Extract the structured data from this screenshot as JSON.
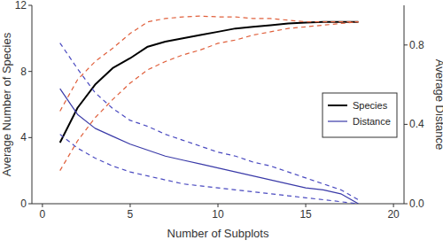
{
  "chart_data": {
    "type": "line",
    "x_label": "Number of Subplots",
    "y_label": "Average Number of Species",
    "y2_label": "Average Distance",
    "x": [
      1,
      2,
      3,
      4,
      5,
      6,
      7,
      8,
      9,
      10,
      11,
      12,
      13,
      14,
      15,
      16,
      17,
      18
    ],
    "xlim": [
      -0.6,
      20.6
    ],
    "xticks": [
      0,
      5,
      10,
      15,
      20
    ],
    "ylim": [
      0,
      12
    ],
    "yticks": [
      0,
      4,
      8,
      12
    ],
    "y2lim": [
      0,
      1.0
    ],
    "y2ticks": [
      {
        "value": 0,
        "label": "0.0"
      },
      0.4,
      0.8
    ],
    "legend": "right",
    "series": [
      {
        "name": "Species",
        "color": "#000000",
        "line_style": "solid",
        "values": [
          3.7,
          5.8,
          7.2,
          8.2,
          8.8,
          9.5,
          9.8,
          10.0,
          10.2,
          10.4,
          10.6,
          10.7,
          10.8,
          10.9,
          10.95,
          11.0,
          11.0,
          11.0
        ]
      },
      {
        "name": "Distance",
        "color": "#3a3aa8",
        "line_style": "solid",
        "axis": "y2",
        "values": [
          0.58,
          0.45,
          0.38,
          0.34,
          0.3,
          0.27,
          0.24,
          0.22,
          0.2,
          0.18,
          0.16,
          0.14,
          0.12,
          0.1,
          0.08,
          0.07,
          0.05,
          0.0
        ]
      },
      {
        "color": "#e0603c",
        "line_style": "dashed",
        "values": [
          5.6,
          7.5,
          8.6,
          9.4,
          10.3,
          11.0,
          11.2,
          11.3,
          11.35,
          11.3,
          11.3,
          11.2,
          11.2,
          11.1,
          11.0,
          11.0,
          11.0,
          11.0
        ]
      },
      {
        "color": "#e0603c",
        "line_style": "dashed",
        "values": [
          2.0,
          3.8,
          5.2,
          6.3,
          7.3,
          8.1,
          8.6,
          9.0,
          9.3,
          9.7,
          9.9,
          10.2,
          10.4,
          10.6,
          10.7,
          10.8,
          10.9,
          11.0
        ]
      },
      {
        "color": "#4a4ac0",
        "line_style": "dashed",
        "axis": "y2",
        "values": [
          0.81,
          0.68,
          0.56,
          0.48,
          0.42,
          0.39,
          0.35,
          0.32,
          0.29,
          0.26,
          0.24,
          0.21,
          0.19,
          0.16,
          0.13,
          0.1,
          0.07,
          0.02
        ]
      },
      {
        "color": "#4a4ac0",
        "line_style": "dashed",
        "axis": "y2",
        "values": [
          0.35,
          0.28,
          0.23,
          0.19,
          0.16,
          0.14,
          0.12,
          0.1,
          0.09,
          0.08,
          0.07,
          0.06,
          0.05,
          0.04,
          0.03,
          0.02,
          0.01,
          0.0
        ]
      }
    ]
  }
}
